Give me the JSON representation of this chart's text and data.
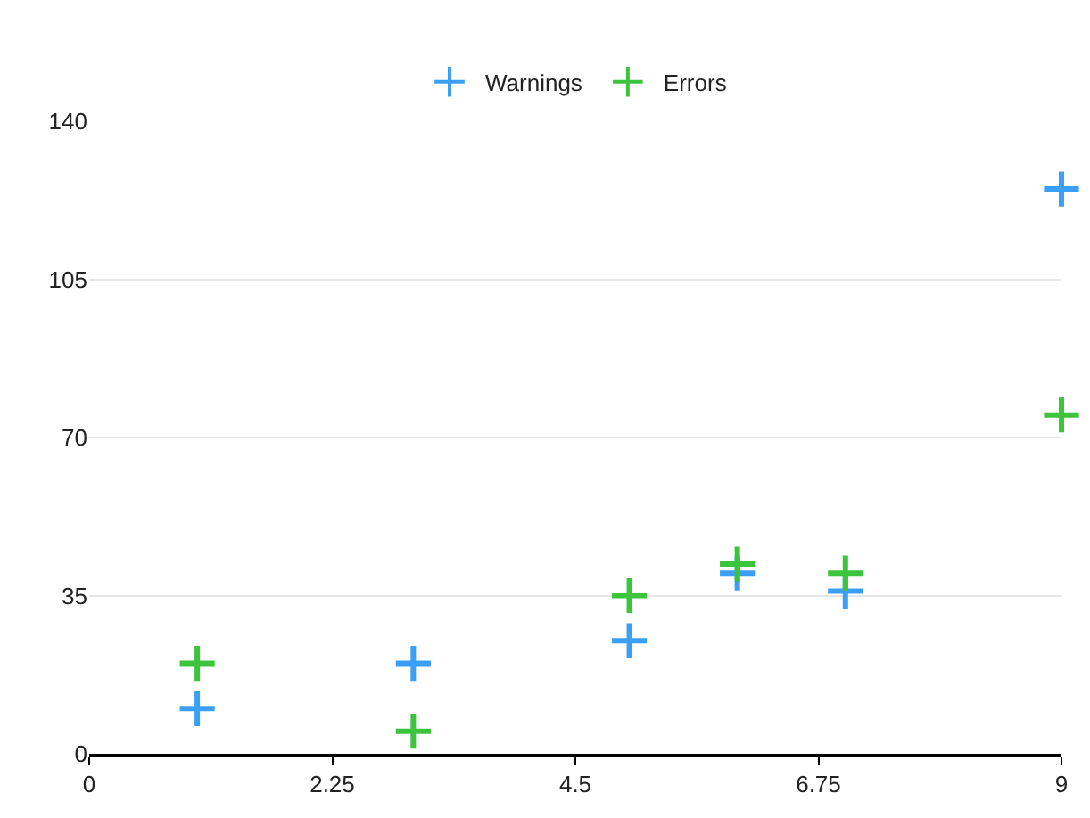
{
  "chart_data": {
    "type": "scatter",
    "x": [
      1,
      3,
      5,
      6,
      7,
      9
    ],
    "series": [
      {
        "name": "Warnings",
        "color": "#3a9ff5",
        "values": [
          10,
          20,
          25,
          40,
          36,
          125
        ]
      },
      {
        "name": "Errors",
        "color": "#3cc43c",
        "values": [
          20,
          5,
          35,
          42,
          40,
          75
        ]
      }
    ],
    "xlim": [
      0,
      9
    ],
    "xticks": [
      0,
      2.25,
      4.5,
      6.75,
      9
    ],
    "ylim": [
      0,
      140
    ],
    "yticks": [
      0,
      35,
      70,
      105,
      140
    ],
    "grid": "y",
    "legend": "top",
    "marker": "cross"
  }
}
